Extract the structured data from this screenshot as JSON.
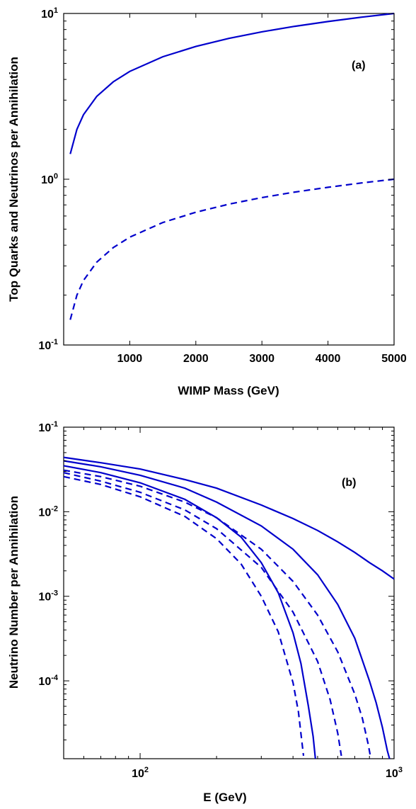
{
  "chart_data": [
    {
      "type": "line",
      "panel_label": "(a)",
      "xlabel": "WIMP Mass (GeV)",
      "ylabel": "Top Quarks and Neutrinos per Annihilation",
      "xlim": [
        0,
        5000
      ],
      "ylim": [
        0.1,
        10
      ],
      "yscale": "log",
      "xticks": [
        "1000",
        "2000",
        "3000",
        "4000",
        "5000"
      ],
      "yticks": [
        {
          "base": "10",
          "exp": "1"
        },
        {
          "base": "10",
          "exp": "0"
        },
        {
          "base": "10",
          "exp": "-1"
        }
      ],
      "grid": false,
      "color": "#0000cc",
      "series": [
        {
          "style": "solid",
          "x": [
            100,
            200,
            300,
            500,
            750,
            1000,
            1500,
            2000,
            2500,
            3000,
            3500,
            4000,
            4500,
            5000
          ],
          "y": [
            1.42,
            2.0,
            2.45,
            3.16,
            3.87,
            4.47,
            5.48,
            6.32,
            7.07,
            7.75,
            8.37,
            8.94,
            9.49,
            10.0
          ]
        },
        {
          "style": "dashed",
          "x": [
            100,
            200,
            300,
            500,
            750,
            1000,
            1500,
            2000,
            2500,
            3000,
            3500,
            4000,
            4500,
            5000
          ],
          "y": [
            0.142,
            0.2,
            0.245,
            0.316,
            0.387,
            0.447,
            0.548,
            0.632,
            0.707,
            0.775,
            0.837,
            0.894,
            0.949,
            1.0
          ]
        }
      ]
    },
    {
      "type": "line",
      "panel_label": "(b)",
      "xlabel": "E (GeV)",
      "ylabel": "Neutrino Number per Annihilation",
      "xlim": [
        50,
        1000
      ],
      "ylim": [
        1.2e-05,
        0.1
      ],
      "xscale": "log",
      "yscale": "log",
      "xticks": [
        {
          "base": "10",
          "exp": "2"
        },
        {
          "base": "10",
          "exp": "3"
        }
      ],
      "yticks": [
        {
          "base": "10",
          "exp": "-1"
        },
        {
          "base": "10",
          "exp": "-2"
        },
        {
          "base": "10",
          "exp": "-3"
        },
        {
          "base": "10",
          "exp": "-4"
        }
      ],
      "grid": false,
      "color": "#0000cc",
      "series": [
        {
          "style": "solid",
          "x": [
            50,
            70,
            100,
            150,
            200,
            300,
            400,
            500,
            600,
            700,
            800,
            900,
            1000
          ],
          "y": [
            0.044,
            0.038,
            0.032,
            0.024,
            0.019,
            0.012,
            0.0083,
            0.006,
            0.0044,
            0.0033,
            0.0025,
            0.002,
            0.0016
          ]
        },
        {
          "style": "solid",
          "x": [
            50,
            70,
            100,
            150,
            200,
            300,
            400,
            500,
            600,
            700,
            800,
            850,
            900,
            940,
            960
          ],
          "y": [
            0.04,
            0.034,
            0.027,
            0.019,
            0.013,
            0.0068,
            0.0036,
            0.0018,
            0.0008,
            0.00032,
            0.0001,
            5.5e-05,
            2.8e-05,
            1.5e-05,
            1.2e-05
          ]
        },
        {
          "style": "solid",
          "x": [
            50,
            70,
            100,
            150,
            200,
            250,
            300,
            350,
            400,
            430,
            460,
            480,
            490
          ],
          "y": [
            0.035,
            0.029,
            0.022,
            0.014,
            0.0085,
            0.005,
            0.0025,
            0.0011,
            0.00037,
            0.00016,
            5e-05,
            2.2e-05,
            1.2e-05
          ]
        },
        {
          "style": "dashed",
          "x": [
            50,
            70,
            100,
            150,
            200,
            300,
            400,
            500,
            600,
            700,
            750,
            790,
            810
          ],
          "y": [
            0.031,
            0.026,
            0.02,
            0.013,
            0.0085,
            0.0036,
            0.0015,
            0.0006,
            0.00022,
            7e-05,
            3.6e-05,
            1.8e-05,
            1.2e-05
          ]
        },
        {
          "style": "dashed",
          "x": [
            50,
            70,
            100,
            150,
            200,
            300,
            400,
            500,
            560,
            600,
            620
          ],
          "y": [
            0.029,
            0.023,
            0.017,
            0.0105,
            0.0063,
            0.0022,
            0.00065,
            0.00017,
            6e-05,
            2.4e-05,
            1.3e-05
          ]
        },
        {
          "style": "dashed",
          "x": [
            50,
            70,
            100,
            150,
            200,
            250,
            300,
            350,
            400,
            420,
            440
          ],
          "y": [
            0.026,
            0.021,
            0.015,
            0.0088,
            0.0048,
            0.0024,
            0.001,
            0.00038,
            9.5e-05,
            4.3e-05,
            1.3e-05
          ]
        }
      ]
    }
  ]
}
